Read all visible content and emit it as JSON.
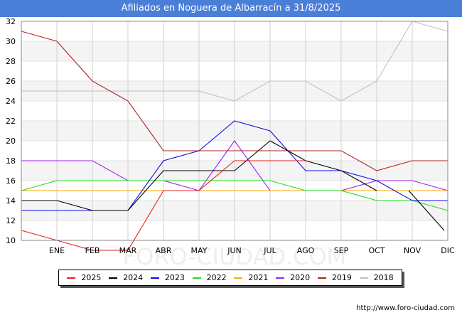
{
  "title": "Afiliados en Noguera de Albarracín a 31/8/2025",
  "source": "http://www.foro-ciudad.com",
  "watermark": "FORO-CIUDAD.COM",
  "chart_data": {
    "type": "line",
    "title": "Afiliados en Noguera de Albarracín a 31/8/2025",
    "x": [
      "",
      "ENE",
      "FEB",
      "MAR",
      "ABR",
      "MAY",
      "JUN",
      "JUL",
      "AGO",
      "SEP",
      "OCT",
      "NOV",
      "DIC"
    ],
    "ylim": [
      10,
      32
    ],
    "yticks": [
      10,
      12,
      14,
      16,
      18,
      20,
      22,
      24,
      26,
      28,
      30,
      32
    ],
    "series": [
      {
        "name": "2025",
        "color": "#e02020",
        "values": [
          11,
          10,
          9,
          9,
          15,
          15,
          18,
          18,
          18,
          null,
          null,
          null,
          null
        ]
      },
      {
        "name": "2024",
        "color": "#000000",
        "values": [
          14,
          14,
          13,
          13,
          17,
          17,
          17,
          20,
          18,
          17,
          15,
          null,
          null
        ]
      },
      {
        "name": "2023",
        "color": "#1010e0",
        "values": [
          13,
          13,
          13,
          13,
          18,
          19,
          22,
          21,
          17,
          17,
          16,
          14,
          14
        ]
      },
      {
        "name": "2022",
        "color": "#22dd22",
        "values": [
          15,
          16,
          16,
          16,
          16,
          16,
          16,
          16,
          15,
          15,
          14,
          14,
          13
        ]
      },
      {
        "name": "2021",
        "color": "#ffa500",
        "values": [
          15,
          15,
          15,
          15,
          15,
          15,
          15,
          15,
          15,
          15,
          15,
          15,
          15
        ]
      },
      {
        "name": "2020",
        "color": "#a020f0",
        "values": [
          18,
          18,
          18,
          16,
          16,
          15,
          20,
          15,
          15,
          15,
          16,
          16,
          15
        ]
      },
      {
        "name": "2019",
        "color": "#b22222",
        "values": [
          31,
          30,
          26,
          24,
          19,
          19,
          19,
          19,
          19,
          19,
          17,
          18,
          18
        ]
      },
      {
        "name": "2018",
        "color": "#c0c0c0",
        "values": [
          25,
          25,
          25,
          25,
          25,
          25,
          24,
          26,
          26,
          24,
          26,
          32,
          31
        ]
      }
    ],
    "extra_segments": [
      {
        "series": "2024",
        "from": [
          10.9,
          15
        ],
        "to": [
          11.9,
          11
        ]
      }
    ]
  }
}
